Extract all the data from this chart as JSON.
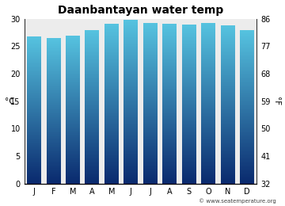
{
  "title": "Daanbantayan water temp",
  "months": [
    "J",
    "F",
    "M",
    "A",
    "M",
    "J",
    "J",
    "A",
    "S",
    "O",
    "N",
    "D"
  ],
  "values_c": [
    26.7,
    26.5,
    26.8,
    27.9,
    29.0,
    29.8,
    29.2,
    29.0,
    28.9,
    29.1,
    28.8,
    27.9
  ],
  "ylabel_left": "°C",
  "ylabel_right": "°F",
  "ylim_c": [
    0,
    30
  ],
  "yticks_c": [
    0,
    5,
    10,
    15,
    20,
    25,
    30
  ],
  "yticks_f": [
    32,
    41,
    50,
    59,
    68,
    77,
    86
  ],
  "bar_color_top": "#56c3e0",
  "bar_color_bottom": "#0a2a6e",
  "background_plot": "#ececec",
  "background_fig": "#ffffff",
  "watermark": "© www.seatemperature.org",
  "title_fontsize": 10,
  "axis_label_fontsize": 7.5,
  "tick_fontsize": 7,
  "bar_width": 0.72
}
